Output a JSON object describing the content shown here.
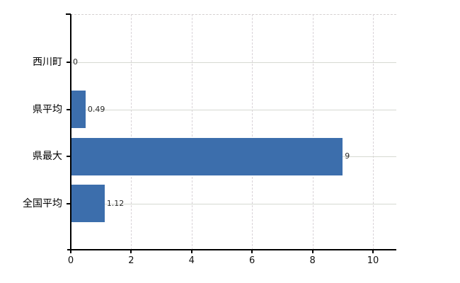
{
  "chart_data": {
    "type": "bar",
    "orientation": "horizontal",
    "title": "",
    "categories": [
      "西川町",
      "県平均",
      "県最大",
      "全国平均"
    ],
    "values": [
      0,
      0.49,
      9,
      1.12
    ],
    "value_labels": [
      "0",
      "0.49",
      "9",
      "1.12"
    ],
    "x_ticks": [
      0,
      2,
      4,
      6,
      8,
      10
    ],
    "x_tick_labels": [
      "0",
      "2",
      "4",
      "6",
      "8",
      "10"
    ],
    "xlim": [
      0,
      10.77
    ],
    "grid": true,
    "legend": false,
    "colors": {
      "bar": "#3c6eac",
      "h_gridline": "#d6d9d2",
      "v_gridline": "#d9d3d8",
      "plot_border": "#d5d0d0",
      "axis": "#000000",
      "category_label": "#000000",
      "tick_label": "#111111",
      "value_label": "#2b2b2b",
      "background": "#ffffff"
    }
  }
}
